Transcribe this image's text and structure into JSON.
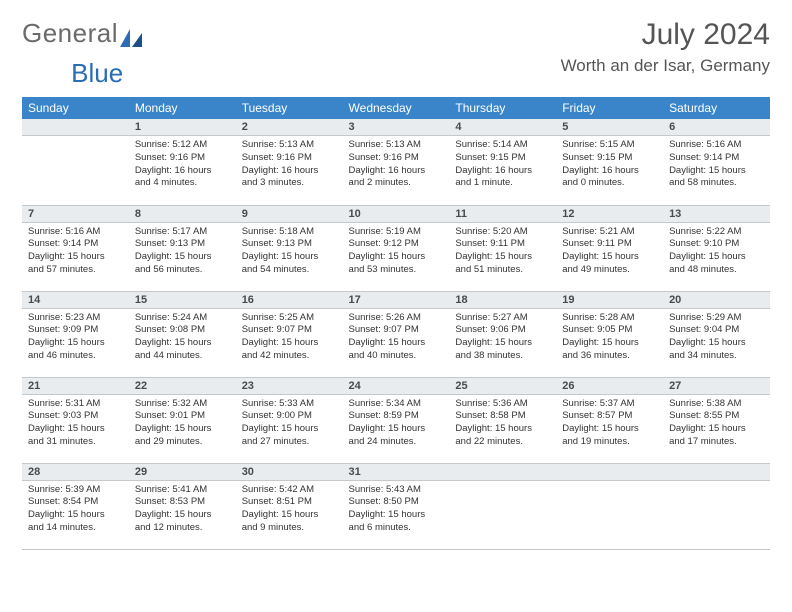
{
  "brand": {
    "part1": "General",
    "part2": "Blue"
  },
  "title": "July 2024",
  "location": "Worth an der Isar, Germany",
  "colors": {
    "header_bg": "#3a85c9",
    "header_text": "#ffffff",
    "daynum_bg": "#e9ecef",
    "border": "#c5c9cc",
    "body_text": "#333333",
    "title_text": "#555555"
  },
  "typography": {
    "title_fontsize": 30,
    "location_fontsize": 17,
    "dayheader_fontsize": 12,
    "daynum_fontsize": 11,
    "body_fontsize": 9.5
  },
  "calendar": {
    "type": "table",
    "columns": [
      "Sunday",
      "Monday",
      "Tuesday",
      "Wednesday",
      "Thursday",
      "Friday",
      "Saturday"
    ],
    "weeks": [
      [
        null,
        {
          "n": "1",
          "sr": "5:12 AM",
          "ss": "9:16 PM",
          "dl": "16 hours and 4 minutes."
        },
        {
          "n": "2",
          "sr": "5:13 AM",
          "ss": "9:16 PM",
          "dl": "16 hours and 3 minutes."
        },
        {
          "n": "3",
          "sr": "5:13 AM",
          "ss": "9:16 PM",
          "dl": "16 hours and 2 minutes."
        },
        {
          "n": "4",
          "sr": "5:14 AM",
          "ss": "9:15 PM",
          "dl": "16 hours and 1 minute."
        },
        {
          "n": "5",
          "sr": "5:15 AM",
          "ss": "9:15 PM",
          "dl": "16 hours and 0 minutes."
        },
        {
          "n": "6",
          "sr": "5:16 AM",
          "ss": "9:14 PM",
          "dl": "15 hours and 58 minutes."
        }
      ],
      [
        {
          "n": "7",
          "sr": "5:16 AM",
          "ss": "9:14 PM",
          "dl": "15 hours and 57 minutes."
        },
        {
          "n": "8",
          "sr": "5:17 AM",
          "ss": "9:13 PM",
          "dl": "15 hours and 56 minutes."
        },
        {
          "n": "9",
          "sr": "5:18 AM",
          "ss": "9:13 PM",
          "dl": "15 hours and 54 minutes."
        },
        {
          "n": "10",
          "sr": "5:19 AM",
          "ss": "9:12 PM",
          "dl": "15 hours and 53 minutes."
        },
        {
          "n": "11",
          "sr": "5:20 AM",
          "ss": "9:11 PM",
          "dl": "15 hours and 51 minutes."
        },
        {
          "n": "12",
          "sr": "5:21 AM",
          "ss": "9:11 PM",
          "dl": "15 hours and 49 minutes."
        },
        {
          "n": "13",
          "sr": "5:22 AM",
          "ss": "9:10 PM",
          "dl": "15 hours and 48 minutes."
        }
      ],
      [
        {
          "n": "14",
          "sr": "5:23 AM",
          "ss": "9:09 PM",
          "dl": "15 hours and 46 minutes."
        },
        {
          "n": "15",
          "sr": "5:24 AM",
          "ss": "9:08 PM",
          "dl": "15 hours and 44 minutes."
        },
        {
          "n": "16",
          "sr": "5:25 AM",
          "ss": "9:07 PM",
          "dl": "15 hours and 42 minutes."
        },
        {
          "n": "17",
          "sr": "5:26 AM",
          "ss": "9:07 PM",
          "dl": "15 hours and 40 minutes."
        },
        {
          "n": "18",
          "sr": "5:27 AM",
          "ss": "9:06 PM",
          "dl": "15 hours and 38 minutes."
        },
        {
          "n": "19",
          "sr": "5:28 AM",
          "ss": "9:05 PM",
          "dl": "15 hours and 36 minutes."
        },
        {
          "n": "20",
          "sr": "5:29 AM",
          "ss": "9:04 PM",
          "dl": "15 hours and 34 minutes."
        }
      ],
      [
        {
          "n": "21",
          "sr": "5:31 AM",
          "ss": "9:03 PM",
          "dl": "15 hours and 31 minutes."
        },
        {
          "n": "22",
          "sr": "5:32 AM",
          "ss": "9:01 PM",
          "dl": "15 hours and 29 minutes."
        },
        {
          "n": "23",
          "sr": "5:33 AM",
          "ss": "9:00 PM",
          "dl": "15 hours and 27 minutes."
        },
        {
          "n": "24",
          "sr": "5:34 AM",
          "ss": "8:59 PM",
          "dl": "15 hours and 24 minutes."
        },
        {
          "n": "25",
          "sr": "5:36 AM",
          "ss": "8:58 PM",
          "dl": "15 hours and 22 minutes."
        },
        {
          "n": "26",
          "sr": "5:37 AM",
          "ss": "8:57 PM",
          "dl": "15 hours and 19 minutes."
        },
        {
          "n": "27",
          "sr": "5:38 AM",
          "ss": "8:55 PM",
          "dl": "15 hours and 17 minutes."
        }
      ],
      [
        {
          "n": "28",
          "sr": "5:39 AM",
          "ss": "8:54 PM",
          "dl": "15 hours and 14 minutes."
        },
        {
          "n": "29",
          "sr": "5:41 AM",
          "ss": "8:53 PM",
          "dl": "15 hours and 12 minutes."
        },
        {
          "n": "30",
          "sr": "5:42 AM",
          "ss": "8:51 PM",
          "dl": "15 hours and 9 minutes."
        },
        {
          "n": "31",
          "sr": "5:43 AM",
          "ss": "8:50 PM",
          "dl": "15 hours and 6 minutes."
        },
        null,
        null,
        null
      ]
    ],
    "labels": {
      "sunrise": "Sunrise:",
      "sunset": "Sunset:",
      "daylight": "Daylight:"
    }
  }
}
